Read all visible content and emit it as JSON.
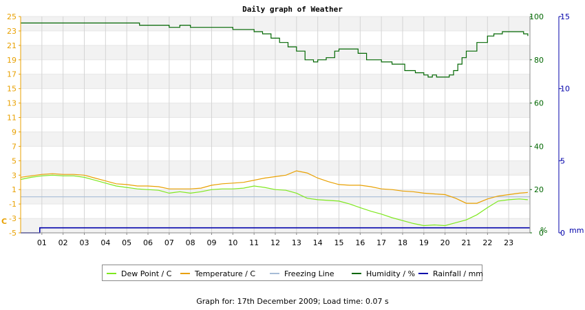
{
  "chart_data": {
    "type": "line",
    "title": "Daily graph of Weather",
    "x_ticks": [
      "01",
      "02",
      "03",
      "04",
      "05",
      "06",
      "07",
      "08",
      "09",
      "10",
      "11",
      "12",
      "13",
      "14",
      "15",
      "16",
      "17",
      "18",
      "19",
      "20",
      "21",
      "22",
      "23"
    ],
    "xlim": [
      0,
      24
    ],
    "left_axis": {
      "unit_label": "C",
      "ticks": [
        25,
        23,
        21,
        19,
        17,
        15,
        13,
        11,
        9,
        7,
        5,
        3,
        1,
        -1,
        -3,
        -5
      ],
      "ylim": [
        -5,
        25
      ],
      "color": "#e8a000"
    },
    "right_axis_1": {
      "unit_label": "%",
      "ticks": [
        100,
        80,
        60,
        40,
        20,
        0
      ],
      "ylim": [
        0,
        100
      ],
      "color": "#006600"
    },
    "right_axis_2": {
      "unit_label": "mm",
      "ticks": [
        15,
        10,
        5,
        0
      ],
      "ylim": [
        0,
        15
      ],
      "color": "#0000aa"
    },
    "grid": true,
    "legend_position": "bottom",
    "series": [
      {
        "name": "Dew Point / C",
        "axis": "left",
        "color": "#7ee81e",
        "points": [
          [
            0,
            2.4
          ],
          [
            0.5,
            2.7
          ],
          [
            1,
            2.9
          ],
          [
            1.5,
            3.0
          ],
          [
            2,
            2.9
          ],
          [
            2.5,
            2.9
          ],
          [
            3,
            2.7
          ],
          [
            3.5,
            2.3
          ],
          [
            4,
            1.9
          ],
          [
            4.5,
            1.5
          ],
          [
            5,
            1.3
          ],
          [
            5.5,
            1.1
          ],
          [
            6,
            1.0
          ],
          [
            6.5,
            0.9
          ],
          [
            7,
            0.5
          ],
          [
            7.5,
            0.7
          ],
          [
            8,
            0.5
          ],
          [
            8.5,
            0.7
          ],
          [
            9,
            1.0
          ],
          [
            9.5,
            1.1
          ],
          [
            10,
            1.1
          ],
          [
            10.5,
            1.2
          ],
          [
            11,
            1.5
          ],
          [
            11.5,
            1.3
          ],
          [
            12,
            1.0
          ],
          [
            12.5,
            0.9
          ],
          [
            13,
            0.5
          ],
          [
            13.5,
            -0.2
          ],
          [
            14,
            -0.4
          ],
          [
            14.5,
            -0.5
          ],
          [
            15,
            -0.6
          ],
          [
            15.5,
            -1.0
          ],
          [
            16,
            -1.5
          ],
          [
            16.5,
            -2.0
          ],
          [
            17,
            -2.4
          ],
          [
            17.5,
            -2.9
          ],
          [
            18,
            -3.3
          ],
          [
            18.5,
            -3.7
          ],
          [
            19,
            -4.0
          ],
          [
            19.5,
            -3.9
          ],
          [
            20,
            -4.0
          ],
          [
            20.5,
            -3.6
          ],
          [
            21,
            -3.2
          ],
          [
            21.5,
            -2.5
          ],
          [
            22,
            -1.5
          ],
          [
            22.5,
            -0.6
          ],
          [
            23,
            -0.4
          ],
          [
            23.5,
            -0.3
          ],
          [
            23.9,
            -0.4
          ]
        ]
      },
      {
        "name": "Temperature / C",
        "axis": "left",
        "color": "#e8a000",
        "points": [
          [
            0,
            2.7
          ],
          [
            0.5,
            2.9
          ],
          [
            1,
            3.1
          ],
          [
            1.5,
            3.2
          ],
          [
            2,
            3.1
          ],
          [
            2.5,
            3.1
          ],
          [
            3,
            3.0
          ],
          [
            3.5,
            2.6
          ],
          [
            4,
            2.2
          ],
          [
            4.5,
            1.8
          ],
          [
            5,
            1.7
          ],
          [
            5.5,
            1.5
          ],
          [
            6,
            1.5
          ],
          [
            6.5,
            1.4
          ],
          [
            7,
            1.1
          ],
          [
            7.5,
            1.1
          ],
          [
            8,
            1.1
          ],
          [
            8.5,
            1.2
          ],
          [
            9,
            1.6
          ],
          [
            9.5,
            1.8
          ],
          [
            10,
            1.9
          ],
          [
            10.5,
            2.0
          ],
          [
            11,
            2.3
          ],
          [
            11.5,
            2.6
          ],
          [
            12,
            2.8
          ],
          [
            12.5,
            3.0
          ],
          [
            13,
            3.6
          ],
          [
            13.5,
            3.3
          ],
          [
            14,
            2.6
          ],
          [
            14.5,
            2.1
          ],
          [
            15,
            1.7
          ],
          [
            15.5,
            1.6
          ],
          [
            16,
            1.6
          ],
          [
            16.5,
            1.4
          ],
          [
            17,
            1.1
          ],
          [
            17.5,
            1.0
          ],
          [
            18,
            0.8
          ],
          [
            18.5,
            0.7
          ],
          [
            19,
            0.5
          ],
          [
            19.5,
            0.4
          ],
          [
            20,
            0.3
          ],
          [
            20.5,
            -0.2
          ],
          [
            21,
            -0.9
          ],
          [
            21.5,
            -0.9
          ],
          [
            22,
            -0.3
          ],
          [
            22.5,
            0.1
          ],
          [
            23,
            0.3
          ],
          [
            23.5,
            0.5
          ],
          [
            23.9,
            0.6
          ]
        ]
      },
      {
        "name": "Freezing Line",
        "axis": "left",
        "color": "#a6bcd6",
        "points": [
          [
            0,
            0
          ],
          [
            24,
            0
          ]
        ]
      },
      {
        "name": "Humidity / %",
        "axis": "right_1",
        "color": "#006600",
        "step": true,
        "points": [
          [
            0,
            97
          ],
          [
            5.5,
            97
          ],
          [
            5.6,
            96
          ],
          [
            6.9,
            96
          ],
          [
            7,
            95
          ],
          [
            7.5,
            96
          ],
          [
            8,
            95
          ],
          [
            10,
            94
          ],
          [
            11,
            93
          ],
          [
            11.4,
            92
          ],
          [
            11.8,
            90
          ],
          [
            12.2,
            88
          ],
          [
            12.6,
            86
          ],
          [
            13,
            84
          ],
          [
            13.4,
            80
          ],
          [
            13.8,
            79
          ],
          [
            14,
            80
          ],
          [
            14.4,
            81
          ],
          [
            14.8,
            84
          ],
          [
            15,
            85
          ],
          [
            15.6,
            85
          ],
          [
            15.9,
            83
          ],
          [
            16.3,
            80
          ],
          [
            17,
            79
          ],
          [
            17.5,
            78
          ],
          [
            18.1,
            75
          ],
          [
            18.6,
            74
          ],
          [
            19,
            73
          ],
          [
            19.2,
            72
          ],
          [
            19.4,
            73
          ],
          [
            19.6,
            72
          ],
          [
            20.2,
            73
          ],
          [
            20.4,
            75
          ],
          [
            20.6,
            78
          ],
          [
            20.8,
            81
          ],
          [
            21,
            84
          ],
          [
            21.5,
            88
          ],
          [
            22,
            91
          ],
          [
            22.3,
            92
          ],
          [
            22.7,
            93
          ],
          [
            23.5,
            93
          ],
          [
            23.7,
            92
          ],
          [
            23.9,
            91
          ]
        ]
      },
      {
        "name": "Rainfall / mm",
        "axis": "right_2",
        "color": "#0000aa",
        "step": true,
        "points": [
          [
            0,
            0
          ],
          [
            0.85,
            0
          ],
          [
            0.9,
            0.35
          ],
          [
            24,
            0.35
          ]
        ]
      }
    ],
    "footer": "Graph for: 17th December 2009; Load time: 0.07 s"
  }
}
